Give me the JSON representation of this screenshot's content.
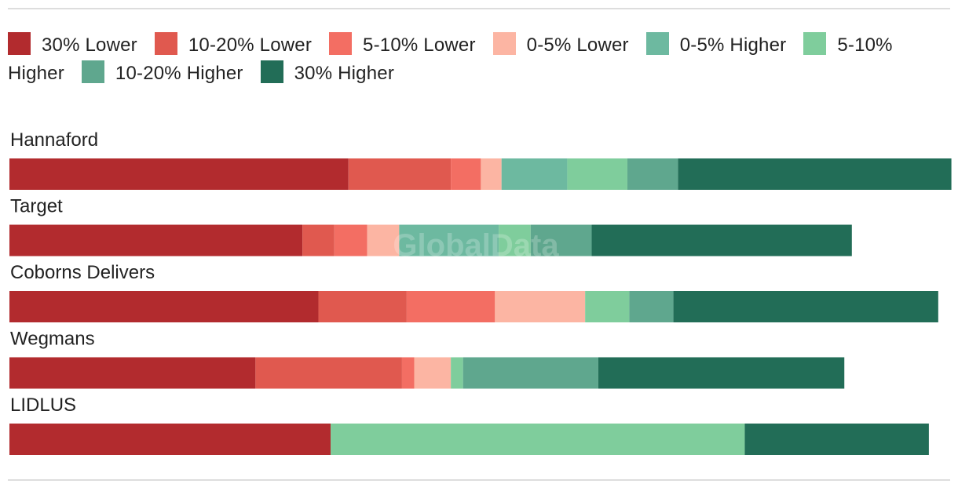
{
  "watermark": "GlobalData",
  "chart_data": {
    "type": "bar",
    "orientation": "horizontal",
    "stacked": true,
    "legend_position": "top",
    "categories": [
      "Hannaford",
      "Target",
      "Coborns Delivers",
      "Wegmans",
      "LIDLUS"
    ],
    "series": [
      {
        "name": "30% Lower",
        "color": "#b22b2e",
        "values": [
          36.1,
          31.2,
          32.9,
          26.2,
          34.2
        ]
      },
      {
        "name": "10-20% Lower",
        "color": "#e0594f",
        "values": [
          10.9,
          3.4,
          9.4,
          15.6,
          0
        ]
      },
      {
        "name": "5-10% Lower",
        "color": "#f36e63",
        "values": [
          3.2,
          3.5,
          9.4,
          1.3,
          0
        ]
      },
      {
        "name": "0-5% Lower",
        "color": "#fcb5a3",
        "values": [
          2.2,
          3.4,
          9.6,
          3.9,
          0
        ]
      },
      {
        "name": "0-5% Higher",
        "color": "#6db9a0",
        "values": [
          7.0,
          10.6,
          0,
          0,
          0
        ]
      },
      {
        "name": "5-10% Higher",
        "color": "#7fcd9c",
        "values": [
          6.4,
          3.4,
          4.7,
          1.3,
          44.1
        ]
      },
      {
        "name": "10-20% Higher",
        "color": "#5fa78e",
        "values": [
          5.4,
          6.5,
          4.7,
          14.4,
          0
        ]
      },
      {
        "name": "30% Higher",
        "color": "#226d57",
        "values": [
          29.1,
          27.7,
          28.2,
          26.2,
          19.6
        ]
      }
    ],
    "xlim": [
      0,
      100
    ]
  }
}
